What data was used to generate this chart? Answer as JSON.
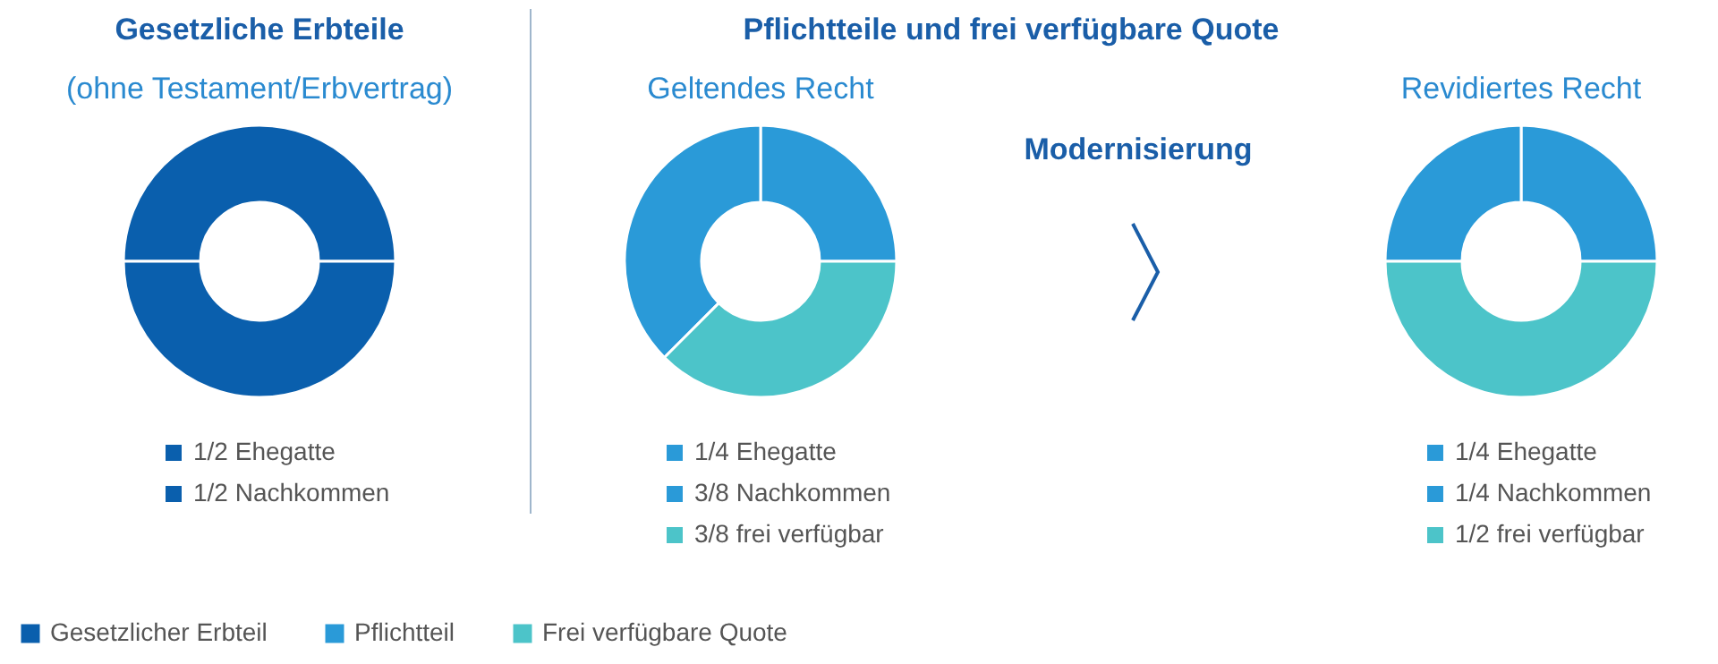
{
  "chart_data": [
    {
      "type": "donut",
      "title": "Gesetzliche Erbteile",
      "subtitle": "(ohne Testament/Erbvertrag)",
      "categories": [
        "1/2 Ehegatte",
        "1/2 Nachkommen"
      ],
      "values": [
        50,
        50
      ],
      "colors": [
        "#0a5fad",
        "#0a5fad"
      ],
      "legend": "bottom"
    },
    {
      "type": "donut",
      "title": "Pflichtteile und frei verfügbare Quote",
      "subtitle": "Geltendes Recht",
      "annotations": [
        "Modernisierung"
      ],
      "categories": [
        "1/4 Ehegatte",
        "3/8 Nachkommen",
        "3/8 frei verfügbar"
      ],
      "values": [
        25,
        37.5,
        37.5
      ],
      "colors": [
        "#2a9ad8",
        "#2a9ad8",
        "#4cc4c9"
      ],
      "legend": "bottom"
    },
    {
      "type": "donut",
      "subtitle": "Revidiertes Recht",
      "categories": [
        "1/4 Ehegatte",
        "1/4 Nachkommen",
        "1/2 frei verfügbar"
      ],
      "values": [
        25,
        25,
        50
      ],
      "colors": [
        "#2a9ad8",
        "#2a9ad8",
        "#4cc4c9"
      ],
      "legend": "bottom"
    },
    {
      "type": "other",
      "categories": [
        "Gesetzlicher Erbteil",
        "Pflichtteil",
        "Frei verfügbare Quote"
      ],
      "colors": [
        "#0a5fad",
        "#2a9ad8",
        "#4cc4c9"
      ]
    }
  ]
}
